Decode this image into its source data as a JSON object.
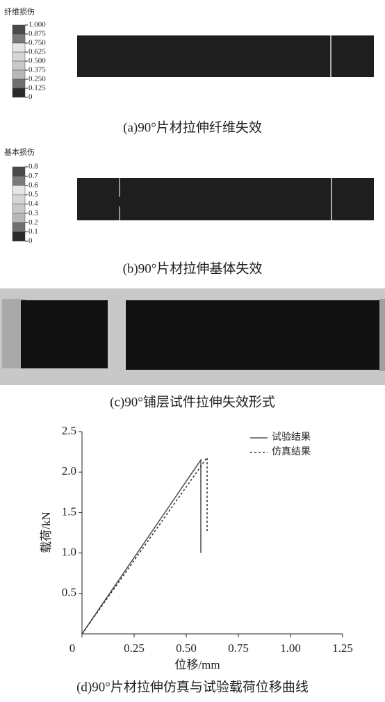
{
  "panel_a": {
    "legend_title": "纤维损伤",
    "legend_ticks": [
      {
        "value": 1,
        "label": "1.000"
      },
      0.875,
      {
        "value": 0.75,
        "label": "0.750"
      },
      0.625,
      {
        "value": 0.5,
        "label": "0.500"
      },
      0.375,
      {
        "value": 0.25,
        "label": "0.250"
      },
      0.125,
      0
    ],
    "caption": "(a)90°片材拉伸纤维失效"
  },
  "panel_b": {
    "legend_title": "基本损伤",
    "legend_ticks": [
      0.8,
      0.7,
      0.6,
      0.5,
      0.4,
      0.3,
      0.2,
      0.1,
      0
    ],
    "caption": "(b)90°片材拉伸基体失效"
  },
  "panel_c": {
    "caption": "(c)90°铺层试件拉伸失效形式"
  },
  "chart_data": {
    "type": "line",
    "caption": "(d)90°片材拉伸仿真与试验载荷位移曲线",
    "x_label": "位移/mm",
    "y_label": "载荷/kN",
    "xlim": [
      0,
      1.25
    ],
    "ylim": [
      0,
      2.5
    ],
    "xticks": [
      0,
      0.25,
      {
        "value": 0.5,
        "label": "0.50"
      },
      0.75,
      {
        "value": 1,
        "label": "1.00"
      },
      1.25
    ],
    "yticks": [
      0.5,
      {
        "value": 1,
        "label": "1.0"
      },
      1.5,
      {
        "value": 2,
        "label": "2.0"
      },
      2.5
    ],
    "legend": "upper right",
    "series": [
      {
        "name": "试验结果",
        "color": "#555555",
        "style": "solid",
        "x": [
          0,
          0.57,
          0.57
        ],
        "values": [
          0,
          2.15,
          1.0
        ]
      },
      {
        "name": "仿真结果",
        "color": "#333333",
        "style": "dotted",
        "x": [
          0,
          0.6,
          0.6
        ],
        "values": [
          0,
          2.18,
          1.25
        ]
      }
    ]
  }
}
